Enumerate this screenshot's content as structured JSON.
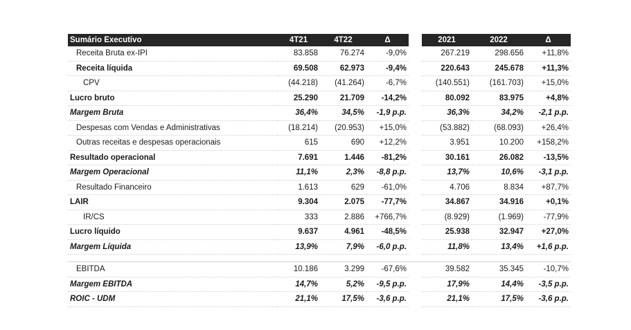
{
  "table": {
    "header": {
      "title": "Sumário Executivo",
      "q1": "4T21",
      "q2": "4T22",
      "qd": "Δ",
      "y1": "2021",
      "y2": "2022",
      "yd": "Δ"
    },
    "rows": [
      {
        "label": "Receita Bruta ex-IPI",
        "q1": "83.858",
        "q2": "76.274",
        "qd": "-9,0%",
        "y1": "267.219",
        "y2": "298.656",
        "yd": "+11,8%"
      },
      {
        "label": "Receita líquida",
        "q1": "69.508",
        "q2": "62.973",
        "qd": "-9,4%",
        "y1": "220.643",
        "y2": "245.678",
        "yd": "+11,3%"
      },
      {
        "label": "CPV",
        "q1": "(44.218)",
        "q2": "(41.264)",
        "qd": "-6,7%",
        "y1": "(140.551)",
        "y2": "(161.703)",
        "yd": "+15,0%"
      },
      {
        "label": "Lucro bruto",
        "q1": "25.290",
        "q2": "21.709",
        "qd": "-14,2%",
        "y1": "80.092",
        "y2": "83.975",
        "yd": "+4,8%"
      },
      {
        "label": "Margem Bruta",
        "q1": "36,4%",
        "q2": "34,5%",
        "qd": "-1,9 p.p.",
        "y1": "36,3%",
        "y2": "34,2%",
        "yd": "-2,1 p.p."
      },
      {
        "label": "Despesas com Vendas e Administrativas",
        "q1": "(18.214)",
        "q2": "(20.953)",
        "qd": "+15,0%",
        "y1": "(53.882)",
        "y2": "(68.093)",
        "yd": "+26,4%"
      },
      {
        "label": "Outras receitas e despesas operacionais",
        "q1": "615",
        "q2": "690",
        "qd": "+12,2%",
        "y1": "3.951",
        "y2": "10.200",
        "yd": "+158,2%"
      },
      {
        "label": "Resultado operacional",
        "q1": "7.691",
        "q2": "1.446",
        "qd": "-81,2%",
        "y1": "30.161",
        "y2": "26.082",
        "yd": "-13,5%"
      },
      {
        "label": "Margem Operacional",
        "q1": "11,1%",
        "q2": "2,3%",
        "qd": "-8,8 p.p.",
        "y1": "13,7%",
        "y2": "10,6%",
        "yd": "-3,1 p.p."
      },
      {
        "label": "Resultado Financeiro",
        "q1": "1.613",
        "q2": "629",
        "qd": "-61,0%",
        "y1": "4.706",
        "y2": "8.834",
        "yd": "+87,7%"
      },
      {
        "label": "LAIR",
        "q1": "9.304",
        "q2": "2.075",
        "qd": "-77,7%",
        "y1": "34.867",
        "y2": "34.916",
        "yd": "+0,1%"
      },
      {
        "label": "IR/CS",
        "q1": "333",
        "q2": "2.886",
        "qd": "+766,7%",
        "y1": "(8.929)",
        "y2": "(1.969)",
        "yd": "-77,9%"
      },
      {
        "label": "Lucro líquido",
        "q1": "9.637",
        "q2": "4.961",
        "qd": "-48,5%",
        "y1": "25.938",
        "y2": "32.947",
        "yd": "+27,0%"
      },
      {
        "label": "Margem Líquida",
        "q1": "13,9%",
        "q2": "7,9%",
        "qd": "-6,0 p.p.",
        "y1": "11,8%",
        "y2": "13,4%",
        "yd": "+1,6 p.p."
      },
      {
        "label": "EBITDA",
        "q1": "10.186",
        "q2": "3.299",
        "qd": "-67,6%",
        "y1": "39.582",
        "y2": "35.345",
        "yd": "-10,7%"
      },
      {
        "label": "Margem EBITDA",
        "q1": "14,7%",
        "q2": "5,2%",
        "qd": "-9,5 p.p.",
        "y1": "17,9%",
        "y2": "14,4%",
        "yd": "-3,5 p.p."
      },
      {
        "label": "ROIC - UDM",
        "q1": "21,1%",
        "q2": "17,5%",
        "qd": "-3,6 p.p.",
        "y1": "21,1%",
        "y2": "17,5%",
        "yd": "-3,6 p.p."
      }
    ]
  }
}
